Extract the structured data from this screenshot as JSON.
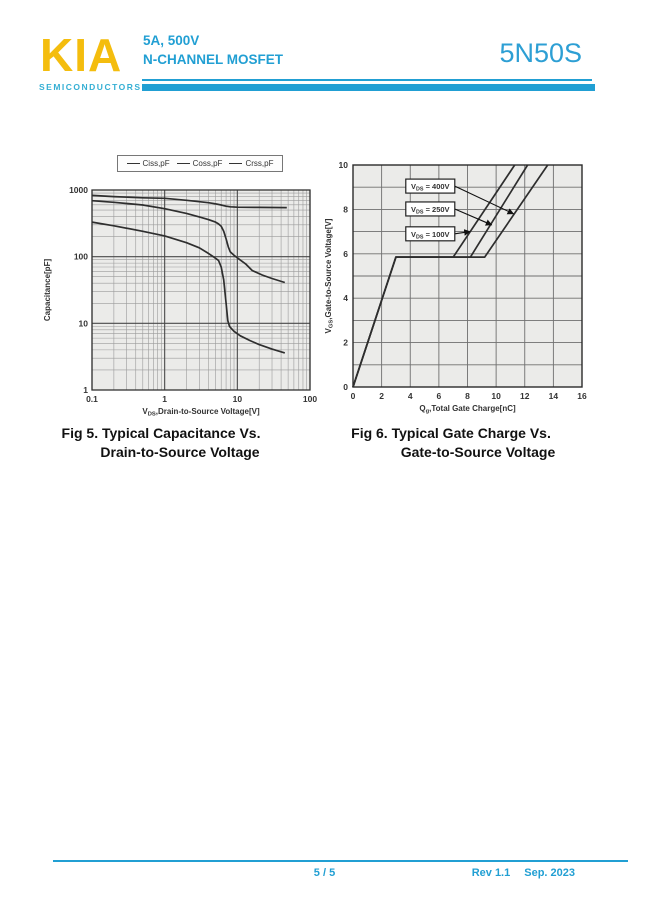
{
  "header": {
    "logo": "KIA",
    "logo_sub": "SEMICONDUCTORS",
    "spec_line1": "5A, 500V",
    "spec_line2": "N-CHANNEL MOSFET",
    "part": "5N50S"
  },
  "footer": {
    "page": "5 / 5",
    "rev": "Rev 1.1",
    "date": "Sep. 2023"
  },
  "colors": {
    "cyan": "#219FD3",
    "cyan_light": "#35AFD4",
    "gold": "#F4BD0E",
    "part_blue": "#2D9FD4",
    "curve": "#2e2e2e",
    "plot_bg": "#ebebe9",
    "grid_minor": "#9b9b9b",
    "grid_major": "#4a4a4a",
    "border": "#333333"
  },
  "figures": {
    "fig5_caption1": "Fig 5. Typical Capacitance Vs.",
    "fig5_caption2": "Drain-to-Source Voltage",
    "fig6_caption1": "Fig 6. Typical Gate Charge Vs.",
    "fig6_caption2": "Gate-to-Source Voltage"
  },
  "chart_data": [
    {
      "type": "line",
      "title": "Fig 5. Typical Capacitance Vs. Drain-to-Source Voltage",
      "x_scale": "log",
      "y_scale": "log",
      "xlim": [
        0.1,
        100
      ],
      "ylim": [
        1,
        1000
      ],
      "x_ticks": [
        0.1,
        1,
        10,
        100
      ],
      "y_ticks": [
        1,
        10,
        100,
        1000
      ],
      "xlabel": {
        "pre": "V",
        "sub": "DS",
        "post": ",Drain-to-Source Voltage[V]"
      },
      "ylabel": "Capacitance[pF]",
      "legend": [
        "Ciss,pF",
        "Coss,pF",
        "Crss,pF"
      ],
      "series": [
        {
          "name": "Ciss",
          "points": [
            [
              0.1,
              830
            ],
            [
              0.2,
              795
            ],
            [
              0.5,
              765
            ],
            [
              1,
              750
            ],
            [
              2,
              700
            ],
            [
              3,
              668
            ],
            [
              4,
              645
            ],
            [
              5,
              620
            ],
            [
              6,
              595
            ],
            [
              7,
              572
            ],
            [
              8,
              560
            ],
            [
              10,
              553
            ],
            [
              20,
              548
            ],
            [
              48,
              545
            ]
          ]
        },
        {
          "name": "Coss",
          "points": [
            [
              0.1,
              690
            ],
            [
              0.2,
              655
            ],
            [
              0.5,
              595
            ],
            [
              1,
              525
            ],
            [
              2,
              445
            ],
            [
              3,
              395
            ],
            [
              4,
              360
            ],
            [
              5,
              330
            ],
            [
              5.5,
              310
            ],
            [
              6,
              285
            ],
            [
              6.5,
              240
            ],
            [
              7,
              185
            ],
            [
              7.5,
              140
            ],
            [
              8,
              118
            ],
            [
              9,
              105
            ],
            [
              10,
              96
            ],
            [
              13,
              78
            ],
            [
              16,
              62
            ],
            [
              22,
              53
            ],
            [
              30,
              47
            ],
            [
              45,
              41
            ]
          ]
        },
        {
          "name": "Crss",
          "points": [
            [
              0.1,
              330
            ],
            [
              0.2,
              290
            ],
            [
              0.5,
              240
            ],
            [
              1,
              205
            ],
            [
              2,
              162
            ],
            [
              3,
              136
            ],
            [
              4,
              112
            ],
            [
              4.8,
              98
            ],
            [
              5.5,
              88
            ],
            [
              6,
              70
            ],
            [
              6.5,
              45
            ],
            [
              7,
              20
            ],
            [
              7.4,
              11
            ],
            [
              7.8,
              9
            ],
            [
              9,
              7.6
            ],
            [
              11,
              6.5
            ],
            [
              15,
              5.5
            ],
            [
              20,
              4.8
            ],
            [
              30,
              4.1
            ],
            [
              45,
              3.6
            ]
          ]
        }
      ]
    },
    {
      "type": "line",
      "title": "Fig 6. Typical Gate Charge Vs. Gate-to-Source Voltage",
      "x_scale": "linear",
      "y_scale": "linear",
      "xlim": [
        0,
        16
      ],
      "ylim": [
        0,
        10
      ],
      "x_tick_step": 2,
      "y_tick_step": 2,
      "x_grid_step": 2,
      "y_grid_step": 1,
      "xlabel": {
        "pre": "Q",
        "sub": "g",
        "post": ",Total Gate Charge[nC]"
      },
      "ylabel": {
        "pre": "V",
        "sub": "GS",
        "post": ",Gate-to-Source Voltage[V]"
      },
      "plateau_voltage": 5.85,
      "series": [
        {
          "name": "VDS = 100V",
          "points": [
            [
              0,
              0
            ],
            [
              3,
              5.85
            ],
            [
              7.0,
              5.85
            ],
            [
              11.3,
              10
            ]
          ]
        },
        {
          "name": "VDS = 250V",
          "points": [
            [
              0,
              0
            ],
            [
              3,
              5.85
            ],
            [
              8.2,
              5.85
            ],
            [
              12.2,
              10
            ]
          ]
        },
        {
          "name": "VDS = 400V",
          "points": [
            [
              0,
              0
            ],
            [
              3,
              5.85
            ],
            [
              9.2,
              5.85
            ],
            [
              13.6,
              10
            ]
          ]
        }
      ],
      "annotations": [
        {
          "label": {
            "pre": "V",
            "sub": "DS",
            "post": " = 400V"
          },
          "box_center": [
            5.4,
            9.05
          ],
          "arrow_tip": [
            11.22,
            7.8
          ]
        },
        {
          "label": {
            "pre": "V",
            "sub": "DS",
            "post": " = 250V"
          },
          "box_center": [
            5.4,
            8.02
          ],
          "arrow_tip": [
            9.7,
            7.3
          ]
        },
        {
          "label": {
            "pre": "V",
            "sub": "DS",
            "post": " = 100V"
          },
          "box_center": [
            5.4,
            6.9
          ],
          "arrow_tip": [
            8.19,
            7.0
          ]
        }
      ]
    }
  ]
}
